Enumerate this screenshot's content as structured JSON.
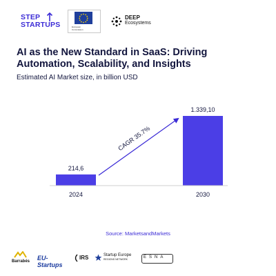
{
  "header": {
    "logos": {
      "step_startups": {
        "line1": "STEP",
        "line2": "STARTUPS",
        "icon": "rocket-arrow-icon"
      },
      "european_commission": {
        "line1": "European",
        "line2": "Commission",
        "icon": "eu-flag-icon"
      },
      "deep_ecosystems": {
        "line1": "DEEP",
        "line2": "Ecosystems",
        "icon": "dot-cluster-icon"
      }
    }
  },
  "title": "AI as the New Standard in SaaS: Driving Automation, Scalability, and Insights",
  "subtitle": "Estimated AI Market size, in billion USD",
  "chart_data": {
    "type": "bar",
    "categories": [
      "2024",
      "2030"
    ],
    "values": [
      214.6,
      1339.1
    ],
    "value_labels": [
      "214,6",
      "1.339,10"
    ],
    "bar_color": "#4b3ee6",
    "annotation": "CAGR 35.7%",
    "ylim": [
      0,
      1339.1
    ],
    "grid": false
  },
  "source": "Source: MarketsandMarkets",
  "footer": {
    "logos": {
      "barrabes": "Barrabés",
      "eu_startups": "EU-Startups",
      "irs": "IRS",
      "startup_europe": {
        "line1": "Startup Europe",
        "line2": "REGIONS NETWORK"
      },
      "esna": "ESNA"
    }
  }
}
